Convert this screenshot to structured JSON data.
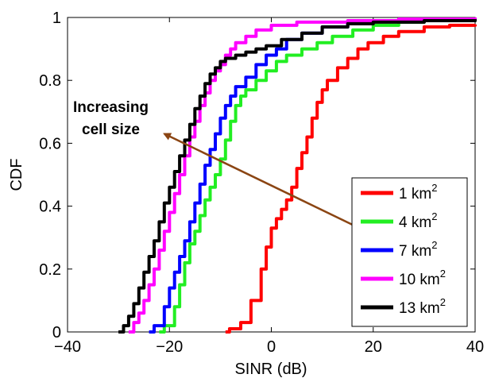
{
  "chart_data": {
    "type": "line",
    "title": "",
    "xlabel": "SINR (dB)",
    "ylabel": "CDF",
    "xlim": [
      -40,
      40
    ],
    "ylim": [
      0,
      1
    ],
    "xticks": [
      "−40",
      "−20",
      "0",
      "20",
      "40"
    ],
    "xtick_values": [
      -40,
      -20,
      0,
      20,
      40
    ],
    "yticks": [
      "0",
      "0.2",
      "0.4",
      "0.6",
      "0.8",
      "1"
    ],
    "ytick_values": [
      0,
      0.2,
      0.4,
      0.6,
      0.8,
      1
    ],
    "grid": false,
    "legend_position": "bottom-right",
    "series": [
      {
        "name": "1 km",
        "unit_sup": "2",
        "color": "#ff0000",
        "points": [
          [
            -9,
            0
          ],
          [
            -8.2,
            0.01
          ],
          [
            -6,
            0.03
          ],
          [
            -4,
            0.1
          ],
          [
            -2,
            0.2
          ],
          [
            -1,
            0.27
          ],
          [
            0,
            0.33
          ],
          [
            1,
            0.36
          ],
          [
            2,
            0.39
          ],
          [
            3,
            0.42
          ],
          [
            4,
            0.46
          ],
          [
            5,
            0.52
          ],
          [
            6,
            0.57
          ],
          [
            7,
            0.62
          ],
          [
            8,
            0.68
          ],
          [
            9,
            0.73
          ],
          [
            10,
            0.77
          ],
          [
            11,
            0.8
          ],
          [
            13,
            0.84
          ],
          [
            15,
            0.87
          ],
          [
            17,
            0.9
          ],
          [
            19,
            0.92
          ],
          [
            22,
            0.94
          ],
          [
            25,
            0.955
          ],
          [
            30,
            0.97
          ],
          [
            35,
            0.975
          ],
          [
            40,
            0.978
          ]
        ]
      },
      {
        "name": "4 km",
        "unit_sup": "2",
        "color": "#22ee22",
        "points": [
          [
            -22,
            0
          ],
          [
            -21,
            0.02
          ],
          [
            -19,
            0.08
          ],
          [
            -18,
            0.15
          ],
          [
            -17,
            0.22
          ],
          [
            -16,
            0.28
          ],
          [
            -15,
            0.32
          ],
          [
            -14,
            0.37
          ],
          [
            -13,
            0.42
          ],
          [
            -12,
            0.46
          ],
          [
            -11,
            0.5
          ],
          [
            -10,
            0.55
          ],
          [
            -9,
            0.61
          ],
          [
            -8,
            0.67
          ],
          [
            -7,
            0.72
          ],
          [
            -6,
            0.75
          ],
          [
            -5,
            0.77
          ],
          [
            -3,
            0.8
          ],
          [
            -1,
            0.83
          ],
          [
            1,
            0.86
          ],
          [
            3,
            0.88
          ],
          [
            6,
            0.9
          ],
          [
            9,
            0.92
          ],
          [
            12,
            0.94
          ],
          [
            16,
            0.96
          ],
          [
            20,
            0.975
          ],
          [
            25,
            0.985
          ],
          [
            30,
            0.99
          ],
          [
            40,
            0.995
          ]
        ]
      },
      {
        "name": "7 km",
        "unit_sup": "2",
        "color": "#0000ff",
        "points": [
          [
            -24,
            0
          ],
          [
            -23,
            0.02
          ],
          [
            -21,
            0.08
          ],
          [
            -20,
            0.14
          ],
          [
            -19,
            0.19
          ],
          [
            -18,
            0.24
          ],
          [
            -17,
            0.29
          ],
          [
            -16,
            0.35
          ],
          [
            -15,
            0.41
          ],
          [
            -14,
            0.47
          ],
          [
            -13,
            0.53
          ],
          [
            -12,
            0.58
          ],
          [
            -11,
            0.63
          ],
          [
            -10,
            0.68
          ],
          [
            -9,
            0.72
          ],
          [
            -8,
            0.75
          ],
          [
            -7,
            0.78
          ],
          [
            -5,
            0.81
          ],
          [
            -3,
            0.85
          ],
          [
            -1,
            0.88
          ],
          [
            1,
            0.9
          ],
          [
            3,
            0.93
          ],
          [
            6,
            0.95
          ],
          [
            10,
            0.97
          ],
          [
            15,
            0.985
          ],
          [
            20,
            0.99
          ],
          [
            30,
            0.995
          ],
          [
            40,
            0.997
          ]
        ]
      },
      {
        "name": "10 km",
        "unit_sup": "2",
        "color": "#ff00ff",
        "points": [
          [
            -28,
            0
          ],
          [
            -27,
            0.03
          ],
          [
            -26,
            0.06
          ],
          [
            -25,
            0.1
          ],
          [
            -24,
            0.15
          ],
          [
            -23,
            0.2
          ],
          [
            -22,
            0.26
          ],
          [
            -21,
            0.32
          ],
          [
            -20,
            0.38
          ],
          [
            -19,
            0.44
          ],
          [
            -18,
            0.5
          ],
          [
            -17,
            0.56
          ],
          [
            -16,
            0.62
          ],
          [
            -15,
            0.67
          ],
          [
            -14,
            0.72
          ],
          [
            -13,
            0.76
          ],
          [
            -12,
            0.8
          ],
          [
            -11,
            0.83
          ],
          [
            -10,
            0.85
          ],
          [
            -9,
            0.88
          ],
          [
            -8,
            0.9
          ],
          [
            -7,
            0.92
          ],
          [
            -5,
            0.94
          ],
          [
            -3,
            0.96
          ],
          [
            0,
            0.975
          ],
          [
            5,
            0.985
          ],
          [
            15,
            0.99
          ],
          [
            25,
            0.995
          ],
          [
            40,
            1.0
          ]
        ]
      },
      {
        "name": "13 km",
        "unit_sup": "2",
        "color": "#000000",
        "points": [
          [
            -30,
            0
          ],
          [
            -29,
            0.02
          ],
          [
            -28,
            0.05
          ],
          [
            -27,
            0.09
          ],
          [
            -26,
            0.14
          ],
          [
            -25,
            0.19
          ],
          [
            -24,
            0.24
          ],
          [
            -23,
            0.29
          ],
          [
            -22,
            0.35
          ],
          [
            -21,
            0.41
          ],
          [
            -20,
            0.46
          ],
          [
            -19,
            0.51
          ],
          [
            -18,
            0.56
          ],
          [
            -17,
            0.61
          ],
          [
            -16,
            0.66
          ],
          [
            -15,
            0.71
          ],
          [
            -14,
            0.75
          ],
          [
            -13,
            0.79
          ],
          [
            -12,
            0.82
          ],
          [
            -11,
            0.84
          ],
          [
            -10,
            0.86
          ],
          [
            -9,
            0.87
          ],
          [
            -7,
            0.88
          ],
          [
            -5,
            0.89
          ],
          [
            -3,
            0.9
          ],
          [
            -1,
            0.91
          ],
          [
            2,
            0.93
          ],
          [
            6,
            0.95
          ],
          [
            10,
            0.97
          ],
          [
            15,
            0.98
          ],
          [
            20,
            0.985
          ],
          [
            30,
            0.99
          ],
          [
            40,
            0.995
          ]
        ]
      }
    ],
    "annotation": {
      "lines": [
        "Increasing",
        "cell size"
      ],
      "color": "#8b4513",
      "arrow_from": [
        25,
        0.27
      ],
      "arrow_to": [
        -21,
        0.63
      ]
    }
  }
}
